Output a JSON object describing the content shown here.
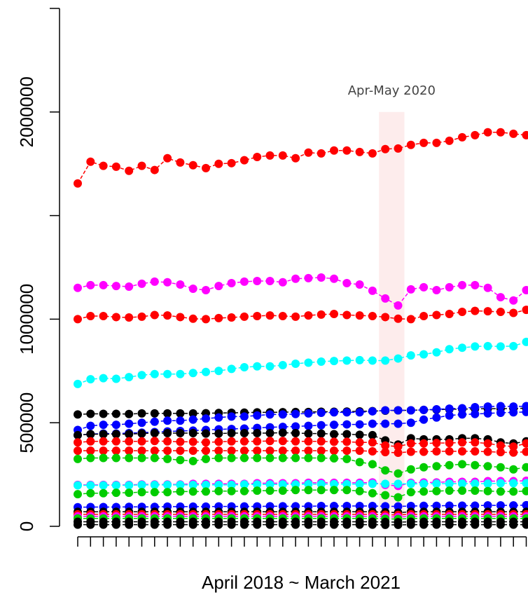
{
  "chart_data": {
    "type": "line",
    "xlabel": "April 2018 ~ March 2021",
    "categories": [
      null,
      null,
      null,
      null,
      null,
      null,
      null,
      null,
      null,
      null,
      null,
      null,
      null,
      null,
      null,
      null,
      null,
      null,
      null,
      null,
      null,
      null,
      null,
      null,
      null,
      null,
      null,
      null,
      null,
      null,
      null,
      null,
      null,
      null,
      null,
      null
    ],
    "ylim": [
      0,
      2500000
    ],
    "yticks": [
      0,
      500000,
      1000000,
      {
        "value": 1500000,
        "label": null
      },
      2000000,
      {
        "value": 2500000,
        "label": null
      }
    ],
    "highlight": {
      "start": 24,
      "end": 25,
      "label": "Apr-May 2020",
      "color": "#fdecec"
    },
    "series": [
      {
        "color": "#ff0000",
        "values": [
          1655000,
          1760000,
          1740000,
          1736000,
          1716000,
          1740000,
          1720000,
          1777000,
          1756000,
          1743000,
          1729000,
          1750000,
          1753000,
          1767000,
          1783000,
          1790000,
          1790000,
          1777000,
          1804000,
          1800000,
          1814000,
          1814000,
          1807000,
          1800000,
          1821000,
          1824000,
          1841000,
          1851000,
          1851000,
          1861000,
          1878000,
          1888000,
          1902000,
          1902000,
          1895000,
          1888000
        ]
      },
      {
        "color": "#ff00ff",
        "values": [
          1151000,
          1164000,
          1164000,
          1160000,
          1157000,
          1171000,
          1181000,
          1178000,
          1167000,
          1147000,
          1140000,
          1160000,
          1174000,
          1181000,
          1184000,
          1184000,
          1178000,
          1195000,
          1198000,
          1201000,
          1195000,
          1174000,
          1167000,
          1137000,
          1100000,
          1066000,
          1144000,
          1154000,
          1140000,
          1154000,
          1164000,
          1164000,
          1151000,
          1106000,
          1090000,
          1140000
        ]
      },
      {
        "color": "#ff0000",
        "values": [
          1000000,
          1015000,
          1015000,
          1010000,
          1008000,
          1012000,
          1020000,
          1018000,
          1010000,
          1002000,
          1000000,
          1005000,
          1008000,
          1012000,
          1015000,
          1018000,
          1015000,
          1012000,
          1018000,
          1022000,
          1025000,
          1020000,
          1018000,
          1015000,
          1010000,
          1002000,
          1000000,
          1015000,
          1020000,
          1025000,
          1035000,
          1040000,
          1038000,
          1035000,
          1030000,
          1045000
        ]
      },
      {
        "color": "#00ffff",
        "values": [
          687000,
          710000,
          715000,
          712000,
          720000,
          730000,
          735000,
          735000,
          735000,
          740000,
          745000,
          750000,
          760000,
          768000,
          772000,
          772000,
          778000,
          785000,
          790000,
          795000,
          798000,
          800000,
          802000,
          800000,
          800000,
          810000,
          825000,
          830000,
          840000,
          855000,
          862000,
          868000,
          870000,
          868000,
          870000,
          890000
        ]
      },
      {
        "color": "#000000",
        "values": [
          540000,
          543000,
          543000,
          543000,
          542000,
          545000,
          545000,
          545000,
          545000,
          545000,
          546000,
          547000,
          548000,
          549000,
          550000,
          550000,
          551000,
          552000,
          552000,
          553000,
          553000,
          554000,
          555000,
          556000,
          558000,
          560000,
          560000,
          562000,
          563000,
          565000,
          566000,
          567000,
          568000,
          568000,
          569000,
          570000
        ]
      },
      {
        "color": "#0000ff",
        "values": [
          465000,
          485000,
          490000,
          490000,
          495000,
          500000,
          505000,
          510000,
          510000,
          515000,
          520000,
          525000,
          530000,
          530000,
          535000,
          540000,
          540000,
          542000,
          545000,
          548000,
          550000,
          550000,
          550000,
          555000,
          560000,
          560000,
          560000,
          562000,
          565000,
          568000,
          570000,
          575000,
          578000,
          580000,
          578000,
          580000
        ]
      },
      {
        "color": "#0000ff",
        "values": [
          440000,
          445000,
          448000,
          448000,
          450000,
          452000,
          455000,
          458000,
          460000,
          462000,
          465000,
          468000,
          470000,
          472000,
          475000,
          478000,
          480000,
          482000,
          485000,
          488000,
          490000,
          492000,
          492000,
          495000,
          495000,
          495000,
          500000,
          515000,
          525000,
          535000,
          540000,
          542000,
          545000,
          548000,
          550000,
          552000
        ]
      },
      {
        "color": "#000000",
        "values": [
          440000,
          445000,
          445000,
          445000,
          445000,
          448000,
          450000,
          450000,
          450000,
          450000,
          448000,
          448000,
          450000,
          450000,
          450000,
          450000,
          452000,
          450000,
          448000,
          448000,
          445000,
          445000,
          442000,
          440000,
          415000,
          395000,
          425000,
          420000,
          420000,
          420000,
          425000,
          425000,
          420000,
          405000,
          400000,
          410000
        ]
      },
      {
        "color": "#ff0000",
        "values": [
          405000,
          410000,
          410000,
          410000,
          410000,
          410000,
          412000,
          410000,
          408000,
          408000,
          405000,
          408000,
          410000,
          410000,
          410000,
          412000,
          412000,
          410000,
          410000,
          410000,
          408000,
          408000,
          405000,
          405000,
          390000,
          385000,
          400000,
          400000,
          402000,
          402000,
          405000,
          405000,
          400000,
          390000,
          385000,
          400000
        ]
      },
      {
        "color": "#ff0000",
        "values": [
          365000,
          365000,
          365000,
          365000,
          365000,
          365000,
          365000,
          365000,
          365000,
          365000,
          365000,
          365000,
          365000,
          365000,
          365000,
          365000,
          365000,
          365000,
          365000,
          365000,
          365000,
          365000,
          365000,
          362000,
          358000,
          355000,
          360000,
          360000,
          362000,
          362000,
          362000,
          362000,
          360000,
          358000,
          356000,
          360000
        ]
      },
      {
        "color": "#00cc00",
        "values": [
          325000,
          330000,
          330000,
          330000,
          330000,
          330000,
          330000,
          325000,
          320000,
          315000,
          325000,
          330000,
          330000,
          330000,
          330000,
          330000,
          330000,
          330000,
          330000,
          330000,
          328000,
          325000,
          310000,
          300000,
          270000,
          255000,
          275000,
          285000,
          290000,
          295000,
          300000,
          295000,
          290000,
          285000,
          275000,
          285000
        ]
      },
      {
        "color": "#ff00ff",
        "values": [
          200000,
          200000,
          200000,
          200000,
          200000,
          202000,
          202000,
          202000,
          202000,
          205000,
          205000,
          205000,
          205000,
          205000,
          208000,
          208000,
          208000,
          208000,
          210000,
          210000,
          210000,
          210000,
          210000,
          212000,
          200000,
          195000,
          210000,
          212000,
          212000,
          215000,
          215000,
          215000,
          218000,
          218000,
          218000,
          220000
        ]
      },
      {
        "color": "#00ffff",
        "values": [
          198000,
          198000,
          198000,
          198000,
          198000,
          200000,
          200000,
          200000,
          200000,
          200000,
          200000,
          200000,
          200000,
          202000,
          202000,
          202000,
          202000,
          202000,
          204000,
          204000,
          204000,
          204000,
          204000,
          205000,
          205000,
          205000,
          205000,
          205000,
          206000,
          206000,
          206000,
          206000,
          206000,
          208000,
          208000,
          208000
        ]
      },
      {
        "color": "#00cc00",
        "values": [
          155000,
          160000,
          160000,
          162000,
          162000,
          165000,
          165000,
          165000,
          168000,
          168000,
          168000,
          170000,
          170000,
          170000,
          172000,
          172000,
          172000,
          175000,
          175000,
          175000,
          175000,
          175000,
          170000,
          160000,
          150000,
          140000,
          165000,
          168000,
          170000,
          172000,
          172000,
          172000,
          170000,
          168000,
          168000,
          170000
        ]
      },
      {
        "color": "#0000ff",
        "values": [
          92000,
          93000,
          93000,
          93000,
          94000,
          94000,
          94000,
          95000,
          95000,
          95000,
          95000,
          96000,
          96000,
          96000,
          96000,
          97000,
          97000,
          97000,
          97000,
          98000,
          98000,
          98000,
          98000,
          98000,
          97000,
          96000,
          98000,
          99000,
          99000,
          100000,
          100000,
          100000,
          101000,
          101000,
          101000,
          102000
        ]
      },
      {
        "color": "#000000",
        "values": [
          70000,
          70000,
          70000,
          70000,
          70000,
          70000,
          70000,
          70000,
          70000,
          70000,
          70000,
          70000,
          70000,
          70000,
          70000,
          70000,
          70000,
          70000,
          70000,
          70000,
          70000,
          70000,
          70000,
          70000,
          68000,
          66000,
          70000,
          70000,
          70000,
          70000,
          70000,
          70000,
          70000,
          70000,
          70000,
          70000
        ]
      },
      {
        "color": "#ff0000",
        "values": [
          58000,
          58000,
          58000,
          58000,
          58000,
          58000,
          58000,
          58000,
          58000,
          58000,
          58000,
          58000,
          58000,
          58000,
          58000,
          58000,
          58000,
          58000,
          58000,
          58000,
          58000,
          58000,
          58000,
          58000,
          56000,
          55000,
          58000,
          58000,
          58000,
          58000,
          58000,
          58000,
          58000,
          58000,
          58000,
          58000
        ]
      },
      {
        "color": "#ff00ff",
        "values": [
          48000,
          48000,
          48000,
          48000,
          48000,
          48000,
          48000,
          48000,
          48000,
          48000,
          48000,
          48000,
          48000,
          48000,
          48000,
          48000,
          48000,
          48000,
          48000,
          48000,
          48000,
          48000,
          48000,
          48000,
          46000,
          45000,
          48000,
          48000,
          48000,
          48000,
          48000,
          48000,
          48000,
          48000,
          48000,
          48000
        ]
      },
      {
        "color": "#00cc00",
        "values": [
          38000,
          38000,
          38000,
          38000,
          38000,
          38000,
          38000,
          38000,
          38000,
          38000,
          38000,
          38000,
          38000,
          38000,
          38000,
          38000,
          38000,
          38000,
          38000,
          38000,
          38000,
          38000,
          38000,
          38000,
          36000,
          35000,
          38000,
          38000,
          38000,
          38000,
          38000,
          38000,
          38000,
          38000,
          38000,
          38000
        ]
      },
      {
        "color": "#000000",
        "values": [
          22000,
          22000,
          22000,
          22000,
          22000,
          22000,
          22000,
          22000,
          22000,
          22000,
          22000,
          22000,
          22000,
          22000,
          22000,
          22000,
          22000,
          22000,
          22000,
          22000,
          22000,
          22000,
          22000,
          22000,
          21000,
          20000,
          22000,
          22000,
          22000,
          22000,
          22000,
          22000,
          22000,
          22000,
          22000,
          22000
        ]
      },
      {
        "color": "#000000",
        "values": [
          8000,
          8000,
          8000,
          8000,
          8000,
          8000,
          8000,
          8000,
          8000,
          8000,
          8000,
          8000,
          8000,
          8000,
          8000,
          8000,
          8000,
          8000,
          8000,
          8000,
          8000,
          8000,
          8000,
          8000,
          7000,
          7000,
          8000,
          8000,
          8000,
          8000,
          8000,
          8000,
          8000,
          8000,
          8000,
          8000
        ]
      }
    ]
  }
}
